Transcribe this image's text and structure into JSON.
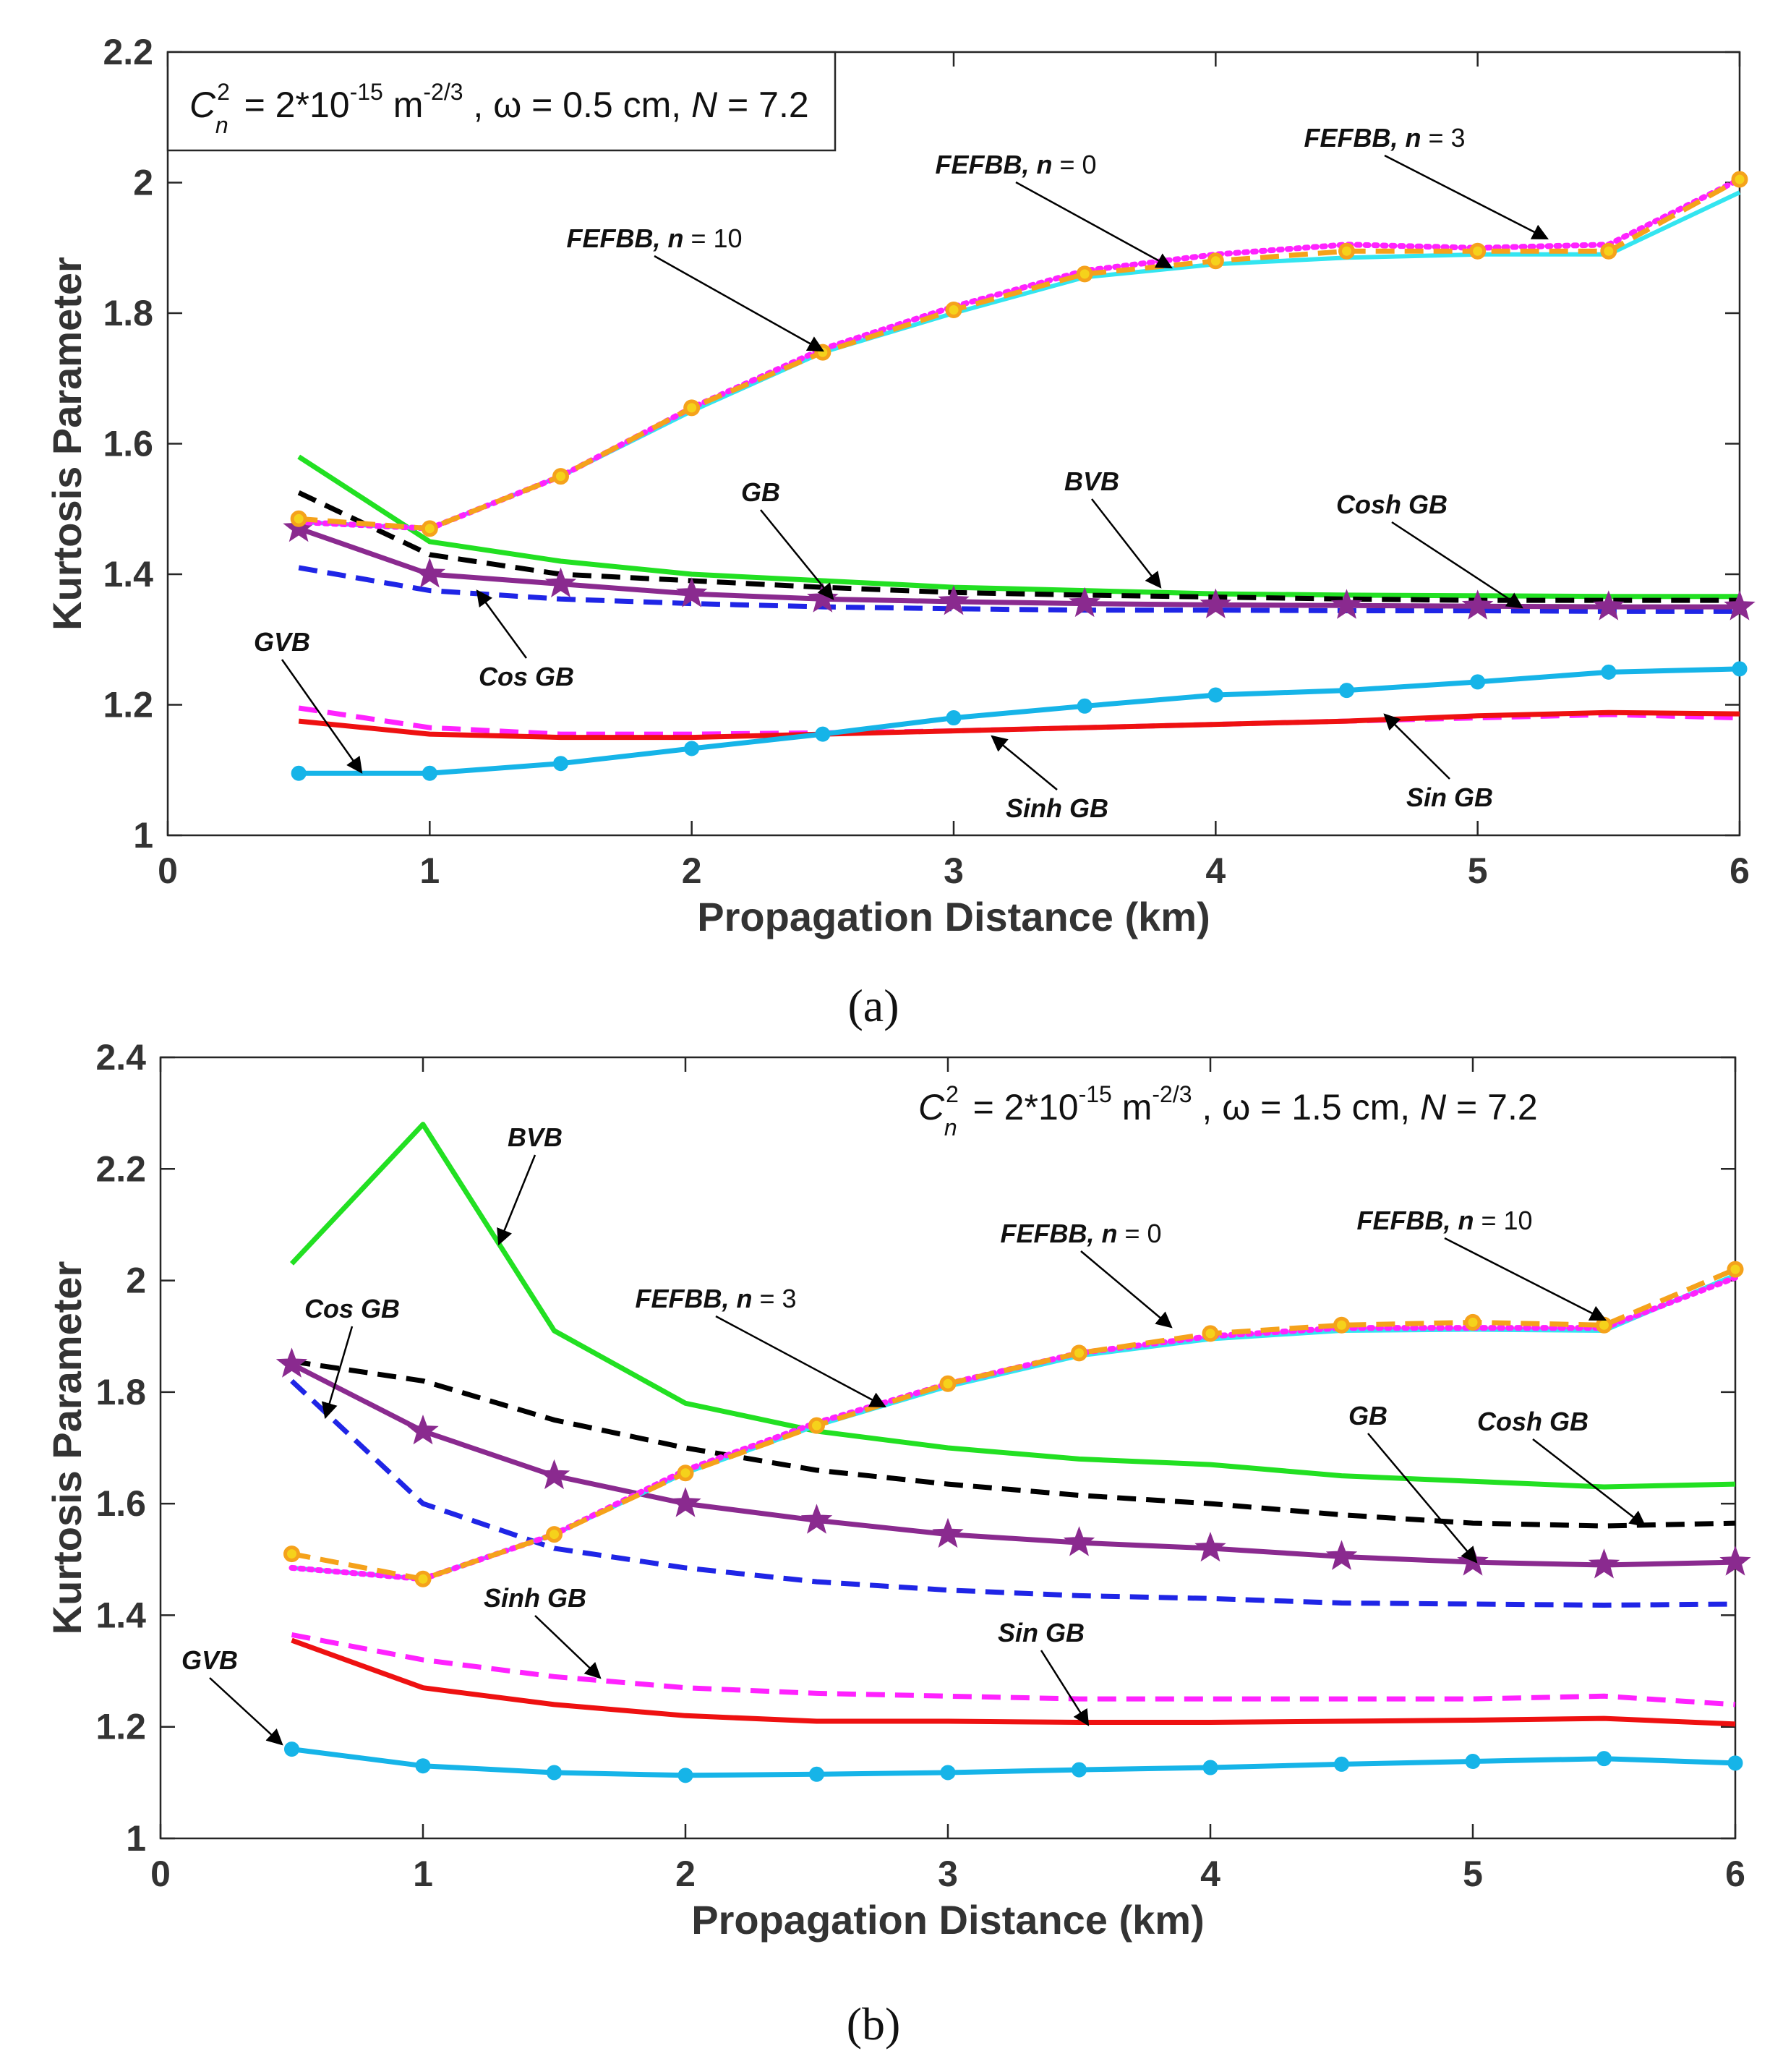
{
  "colors": {
    "BVB": "#22e022",
    "Cosh GB": "#000000",
    "GB": "#8a2a8f",
    "Cos GB": "#1f25e6",
    "Sinh GB": "#ff22ff",
    "Sin GB": "#ee1111",
    "GVB": "#16b4e8",
    "FEFBB n0": "#33e5f0",
    "FEFBB n3": "#f5a21b",
    "FEFBB n10": "#ff22ff"
  },
  "chart_data": [
    {
      "type": "line",
      "panel_label": "(a)",
      "xlabel": "Propagation Distance (km)",
      "ylabel": "Kurtosis Parameter",
      "xlim": [
        0,
        6
      ],
      "ylim": [
        1,
        2.2
      ],
      "xticks": [
        "0",
        "1",
        "2",
        "3",
        "4",
        "5",
        "6"
      ],
      "yticks": [
        "1",
        "1.2",
        "1.4",
        "1.6",
        "1.8",
        "2",
        "2.2"
      ],
      "legend": {
        "c2_symbol": "C",
        "c2_sup": "2",
        "c2_sub": "n",
        "c2_val": "= 2*10",
        "c2_exp": "-15",
        "unit": "m",
        "unit_exp": "-2/3",
        "rest": ",  ω = 0.5 cm,  ",
        "N_sym": "N",
        "N_val": " = 7.2"
      },
      "x": [
        0.5,
        1,
        1.5,
        2,
        2.5,
        3,
        3.5,
        4,
        4.5,
        5,
        5.5,
        6
      ],
      "series": [
        {
          "name": "BVB",
          "style": "solid",
          "marker": "none",
          "values": [
            1.58,
            1.45,
            1.42,
            1.4,
            1.39,
            1.38,
            1.375,
            1.37,
            1.368,
            1.367,
            1.366,
            1.366
          ]
        },
        {
          "name": "Cosh GB",
          "style": "dash",
          "marker": "none",
          "values": [
            1.525,
            1.43,
            1.4,
            1.39,
            1.38,
            1.372,
            1.368,
            1.365,
            1.362,
            1.36,
            1.36,
            1.36
          ]
        },
        {
          "name": "GB",
          "style": "solid",
          "marker": "star",
          "values": [
            1.47,
            1.4,
            1.385,
            1.37,
            1.362,
            1.358,
            1.355,
            1.353,
            1.352,
            1.351,
            1.35,
            1.35
          ]
        },
        {
          "name": "Cos GB",
          "style": "dash",
          "marker": "none",
          "values": [
            1.41,
            1.375,
            1.362,
            1.355,
            1.35,
            1.347,
            1.345,
            1.345,
            1.344,
            1.344,
            1.343,
            1.343
          ]
        },
        {
          "name": "Sinh GB",
          "style": "dash",
          "marker": "none",
          "values": [
            1.195,
            1.165,
            1.155,
            1.155,
            1.157,
            1.16,
            1.165,
            1.17,
            1.175,
            1.18,
            1.185,
            1.18
          ]
        },
        {
          "name": "Sin GB",
          "style": "solid",
          "marker": "none",
          "values": [
            1.175,
            1.155,
            1.15,
            1.15,
            1.155,
            1.16,
            1.165,
            1.17,
            1.175,
            1.183,
            1.188,
            1.186
          ]
        },
        {
          "name": "GVB",
          "style": "solid",
          "marker": "dot",
          "values": [
            1.095,
            1.095,
            1.11,
            1.133,
            1.155,
            1.18,
            1.198,
            1.215,
            1.222,
            1.235,
            1.25,
            1.255
          ]
        },
        {
          "name": "FEFBB n0",
          "style": "solid",
          "marker": "none",
          "values": [
            1.48,
            1.47,
            1.55,
            1.65,
            1.74,
            1.8,
            1.855,
            1.875,
            1.885,
            1.89,
            1.89,
            1.985
          ]
        },
        {
          "name": "FEFBB n10",
          "style": "dot",
          "marker": "none",
          "values": [
            1.48,
            1.47,
            1.55,
            1.655,
            1.745,
            1.81,
            1.865,
            1.89,
            1.905,
            1.9,
            1.905,
            2.005
          ]
        },
        {
          "name": "FEFBB n3",
          "style": "dash",
          "marker": "circle",
          "values": [
            1.485,
            1.47,
            1.55,
            1.655,
            1.74,
            1.805,
            1.86,
            1.88,
            1.895,
            1.895,
            1.895,
            2.005
          ]
        }
      ],
      "annotations": [
        {
          "label": "FEFBB,",
          "n_part": "n",
          "n_val": " = 0"
        },
        {
          "label": "FEFBB,",
          "n_part": "n",
          "n_val": " = 3"
        },
        {
          "label": "FEFBB,",
          "n_part": "n",
          "n_val": " = 10"
        },
        {
          "label": "GB"
        },
        {
          "label": "BVB"
        },
        {
          "label": "Cosh GB"
        },
        {
          "label": "Cos GB"
        },
        {
          "label": "GVB"
        },
        {
          "label": "Sinh GB"
        },
        {
          "label": "Sin GB"
        }
      ]
    },
    {
      "type": "line",
      "panel_label": "(b)",
      "xlabel": "Propagation Distance (km)",
      "ylabel": "Kurtosis Parameter",
      "xlim": [
        0,
        6
      ],
      "ylim": [
        1,
        2.4
      ],
      "xticks": [
        "0",
        "1",
        "2",
        "3",
        "4",
        "5",
        "6"
      ],
      "yticks": [
        "1",
        "1.2",
        "1.4",
        "1.6",
        "1.8",
        "2",
        "2.2",
        "2.4"
      ],
      "legend": {
        "c2_symbol": "C",
        "c2_sup": "2",
        "c2_sub": "n",
        "c2_val": "= 2*10",
        "c2_exp": "-15",
        "unit": "m",
        "unit_exp": "-2/3",
        "rest": ",  ω = 1.5 cm,  ",
        "N_sym": "N",
        "N_val": " = 7.2"
      },
      "x": [
        0.5,
        1,
        1.5,
        2,
        2.5,
        3,
        3.5,
        4,
        4.5,
        5,
        5.5,
        6
      ],
      "series": [
        {
          "name": "BVB",
          "style": "solid",
          "marker": "none",
          "values": [
            2.03,
            2.28,
            1.91,
            1.78,
            1.73,
            1.7,
            1.68,
            1.67,
            1.65,
            1.64,
            1.63,
            1.635
          ]
        },
        {
          "name": "Cosh GB",
          "style": "dash",
          "marker": "none",
          "values": [
            1.855,
            1.82,
            1.75,
            1.7,
            1.66,
            1.635,
            1.615,
            1.6,
            1.58,
            1.565,
            1.56,
            1.565
          ]
        },
        {
          "name": "GB",
          "style": "solid",
          "marker": "star",
          "values": [
            1.85,
            1.73,
            1.65,
            1.6,
            1.57,
            1.545,
            1.53,
            1.52,
            1.505,
            1.495,
            1.49,
            1.495
          ]
        },
        {
          "name": "Cos GB",
          "style": "dash",
          "marker": "none",
          "values": [
            1.82,
            1.6,
            1.52,
            1.485,
            1.46,
            1.445,
            1.435,
            1.43,
            1.422,
            1.42,
            1.418,
            1.42
          ]
        },
        {
          "name": "Sinh GB",
          "style": "dash",
          "marker": "none",
          "values": [
            1.365,
            1.32,
            1.29,
            1.27,
            1.26,
            1.255,
            1.25,
            1.25,
            1.25,
            1.25,
            1.255,
            1.24
          ]
        },
        {
          "name": "Sin GB",
          "style": "solid",
          "marker": "none",
          "values": [
            1.355,
            1.27,
            1.24,
            1.22,
            1.21,
            1.21,
            1.208,
            1.208,
            1.21,
            1.212,
            1.215,
            1.205
          ]
        },
        {
          "name": "GVB",
          "style": "solid",
          "marker": "dot",
          "values": [
            1.16,
            1.13,
            1.118,
            1.113,
            1.115,
            1.118,
            1.123,
            1.127,
            1.133,
            1.138,
            1.143,
            1.135
          ]
        },
        {
          "name": "FEFBB n0",
          "style": "solid",
          "marker": "none",
          "values": [
            1.485,
            1.465,
            1.545,
            1.655,
            1.74,
            1.81,
            1.865,
            1.895,
            1.91,
            1.912,
            1.91,
            2.01
          ]
        },
        {
          "name": "FEFBB n10",
          "style": "dot",
          "marker": "none",
          "values": [
            1.485,
            1.465,
            1.545,
            1.66,
            1.745,
            1.815,
            1.87,
            1.9,
            1.915,
            1.915,
            1.915,
            2.005
          ]
        },
        {
          "name": "FEFBB n3",
          "style": "dash",
          "marker": "circle",
          "values": [
            1.51,
            1.465,
            1.545,
            1.655,
            1.74,
            1.815,
            1.87,
            1.905,
            1.92,
            1.925,
            1.92,
            2.02
          ]
        }
      ],
      "annotations": [
        {
          "label": "BVB"
        },
        {
          "label": "FEFBB,",
          "n_part": "n",
          "n_val": " = 0"
        },
        {
          "label": "FEFBB,",
          "n_part": "n",
          "n_val": " = 10"
        },
        {
          "label": "FEFBB,",
          "n_part": "n",
          "n_val": " = 3"
        },
        {
          "label": "Cos GB"
        },
        {
          "label": "GB"
        },
        {
          "label": "Cosh GB"
        },
        {
          "label": "Sinh GB"
        },
        {
          "label": "Sin GB"
        },
        {
          "label": "GVB"
        }
      ]
    }
  ]
}
